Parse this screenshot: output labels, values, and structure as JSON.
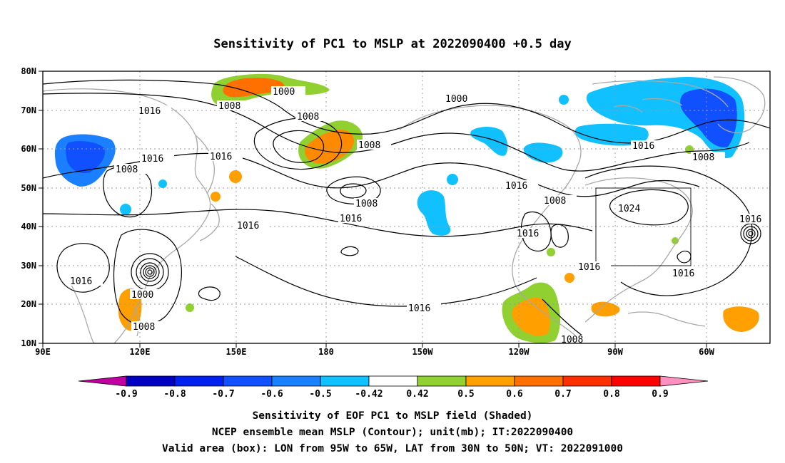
{
  "title": "Sensitivity of PC1 to MSLP at 2022090400 +0.5 day",
  "lat_labels": [
    "80N",
    "70N",
    "60N",
    "50N",
    "40N",
    "30N",
    "20N",
    "10N"
  ],
  "lon_labels": [
    "90E",
    "120E",
    "150E",
    "180",
    "150W",
    "120W",
    "90W",
    "60W"
  ],
  "colorbar": {
    "labels": [
      "-0.9",
      "-0.8",
      "-0.7",
      "-0.6",
      "-0.5",
      "-0.42",
      "0.42",
      "0.5",
      "0.6",
      "0.7",
      "0.8",
      "0.9"
    ],
    "colors": [
      "#c000a0",
      "#0000c0",
      "#0020f0",
      "#1050ff",
      "#1a80ff",
      "#10c0ff",
      "#ffffff",
      "#90d030",
      "#ffa000",
      "#ff7000",
      "#ff3000",
      "#ff0000",
      "#ff90c0"
    ]
  },
  "contour_labels": [
    "1000",
    "1008",
    "1016",
    "1024"
  ],
  "valid_box": {
    "lon_from": "95W",
    "lon_to": "65W",
    "lat_from": "30N",
    "lat_to": "50N"
  },
  "captions": {
    "line1": "Sensitivity of EOF PC1 to MSLP field (Shaded)",
    "line2": "NCEP ensemble mean MSLP (Contour); unit(mb); IT:2022090400",
    "line3": "Valid area (box): LON from 95W to 65W, LAT from 30N to 50N; VT: 2022091000"
  }
}
